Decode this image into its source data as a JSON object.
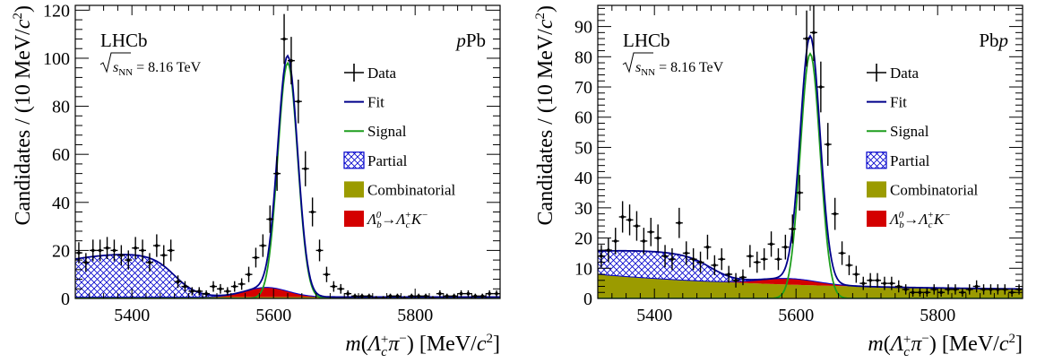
{
  "chart_data": [
    {
      "type": "scatter",
      "experiment": "LHCb",
      "collision": "pPb",
      "energy_label": "√sNN = 8.16 TeV",
      "energy_prefix": "s",
      "energy_sub": "NN",
      "energy_value": " = 8.16 TeV",
      "xlabel": "m(Λc+π−) [MeV/c2]",
      "ylabel": "Candidates / (10 MeV/c2)",
      "xlim": [
        5320,
        5920
      ],
      "ylim": [
        0,
        122
      ],
      "xticks": [
        5400,
        5600,
        5800
      ],
      "yticks": [
        0,
        20,
        40,
        60,
        80,
        100,
        120
      ],
      "legend": [
        "Data",
        "Fit",
        "Signal",
        "Partial",
        "Combinatorial",
        "Λb0→Λc+K−"
      ],
      "legend_position": "right",
      "colors": {
        "data": "#000000",
        "fit": "#00008B",
        "signal": "#1E9E1E",
        "partial": "#0000CC",
        "combinatorial": "#9B9B00",
        "misid": "#D40000"
      },
      "data": {
        "x": [
          5325,
          5335,
          5345,
          5355,
          5365,
          5375,
          5385,
          5395,
          5405,
          5415,
          5425,
          5435,
          5445,
          5455,
          5465,
          5475,
          5485,
          5495,
          5505,
          5515,
          5525,
          5535,
          5545,
          5555,
          5565,
          5575,
          5585,
          5595,
          5605,
          5615,
          5625,
          5635,
          5645,
          5655,
          5665,
          5675,
          5685,
          5695,
          5705,
          5715,
          5725,
          5735,
          5745,
          5755,
          5765,
          5775,
          5785,
          5795,
          5805,
          5815,
          5825,
          5835,
          5845,
          5855,
          5865,
          5875,
          5885,
          5895,
          5905,
          5915
        ],
        "y": [
          19,
          15,
          20,
          20,
          21,
          20,
          18,
          16,
          21,
          20,
          15,
          22,
          18,
          20,
          7,
          5,
          3,
          3,
          2,
          5,
          4,
          3,
          5,
          6,
          10,
          17,
          22,
          33,
          52,
          108,
          99,
          82,
          54,
          36,
          20,
          10,
          5,
          4,
          2,
          1,
          1,
          1,
          0,
          0,
          1,
          1,
          0,
          1,
          1,
          1,
          0,
          2,
          1,
          1,
          2,
          2,
          1,
          1,
          2,
          2
        ],
        "err": [
          4.4,
          3.9,
          4.5,
          4.5,
          4.6,
          4.5,
          4.2,
          4.0,
          4.6,
          4.5,
          3.9,
          4.7,
          4.2,
          4.5,
          2.6,
          2.2,
          1.7,
          1.7,
          1.4,
          2.2,
          2.0,
          1.7,
          2.2,
          2.4,
          3.2,
          4.1,
          4.7,
          5.7,
          7.2,
          10.4,
          9.9,
          9.1,
          7.3,
          6.0,
          4.5,
          3.2,
          2.2,
          2.0,
          1.4,
          1.0,
          1.0,
          1.0,
          1.0,
          1.0,
          1.0,
          1.0,
          1.0,
          1.0,
          1.0,
          1.0,
          1.0,
          1.4,
          1.0,
          1.0,
          1.4,
          1.4,
          1.0,
          1.0,
          1.4,
          1.4
        ]
      },
      "model": {
        "signal": {
          "amplitude": 98,
          "mean": 5620,
          "sigma": 14
        },
        "partial": {
          "amplitude": 18,
          "plateau_end": 5410,
          "edge": 5460,
          "width": 16
        },
        "combinatorial": {
          "level": 0.6
        },
        "misid": {
          "amplitude": 4,
          "mean": 5590,
          "sigma": 30
        }
      }
    },
    {
      "type": "scatter",
      "experiment": "LHCb",
      "collision": "Pbp",
      "energy_label": "√sNN = 8.16 TeV",
      "energy_prefix": "s",
      "energy_sub": "NN",
      "energy_value": " = 8.16 TeV",
      "xlabel": "m(Λc+π−) [MeV/c2]",
      "ylabel": "Candidates / (10 MeV/c2)",
      "xlim": [
        5320,
        5920
      ],
      "ylim": [
        0,
        97
      ],
      "xticks": [
        5400,
        5600,
        5800
      ],
      "yticks": [
        0,
        10,
        20,
        30,
        40,
        50,
        60,
        70,
        80,
        90
      ],
      "legend": [
        "Data",
        "Fit",
        "Signal",
        "Partial",
        "Combinatorial",
        "Λb0→Λc+K−"
      ],
      "legend_position": "right",
      "colors": {
        "data": "#000000",
        "fit": "#00008B",
        "signal": "#1E9E1E",
        "partial": "#0000CC",
        "combinatorial": "#9B9B00",
        "misid": "#D40000"
      },
      "data": {
        "x": [
          5325,
          5335,
          5345,
          5355,
          5365,
          5375,
          5385,
          5395,
          5405,
          5415,
          5425,
          5435,
          5445,
          5455,
          5465,
          5475,
          5485,
          5495,
          5505,
          5515,
          5525,
          5535,
          5545,
          5555,
          5565,
          5575,
          5585,
          5595,
          5605,
          5615,
          5625,
          5635,
          5645,
          5655,
          5665,
          5675,
          5685,
          5695,
          5705,
          5715,
          5725,
          5735,
          5745,
          5755,
          5765,
          5775,
          5785,
          5795,
          5805,
          5815,
          5825,
          5835,
          5845,
          5855,
          5865,
          5875,
          5885,
          5895,
          5905,
          5915
        ],
        "y": [
          14,
          16,
          19,
          27,
          26,
          24,
          19,
          22,
          20,
          14,
          13,
          25,
          15,
          13,
          12,
          17,
          11,
          13,
          8,
          6,
          7,
          14,
          12,
          13,
          18,
          13,
          17,
          23,
          35,
          86,
          88,
          70,
          51,
          28,
          15,
          11,
          8,
          5,
          6,
          6,
          5,
          5,
          4,
          3,
          2,
          2,
          2,
          3,
          2,
          3,
          3,
          2,
          3,
          4,
          3,
          3,
          3,
          3,
          2,
          3
        ],
        "err": [
          3.7,
          4.0,
          4.4,
          5.2,
          5.1,
          4.9,
          4.4,
          4.7,
          4.5,
          3.7,
          3.6,
          5.0,
          3.9,
          3.6,
          3.5,
          4.1,
          3.3,
          3.6,
          2.8,
          2.4,
          2.6,
          3.7,
          3.5,
          3.6,
          4.2,
          3.6,
          4.1,
          4.8,
          5.9,
          9.3,
          9.4,
          8.4,
          7.1,
          5.3,
          3.9,
          3.3,
          2.8,
          2.2,
          2.4,
          2.4,
          2.2,
          2.2,
          2.0,
          1.7,
          1.4,
          1.4,
          1.4,
          1.7,
          1.4,
          1.7,
          1.7,
          1.4,
          1.7,
          2.0,
          1.7,
          1.7,
          1.7,
          1.7,
          1.4,
          1.7
        ]
      },
      "model": {
        "signal": {
          "amplitude": 81,
          "mean": 5620,
          "sigma": 14
        },
        "partial": {
          "amplitude": 9,
          "plateau_end": 5420,
          "edge": 5480,
          "width": 18
        },
        "combinatorial": {
          "start": 8,
          "end": 2.5,
          "decay": 280
        },
        "misid": {
          "amplitude": 2,
          "mean": 5590,
          "sigma": 40
        }
      }
    }
  ]
}
